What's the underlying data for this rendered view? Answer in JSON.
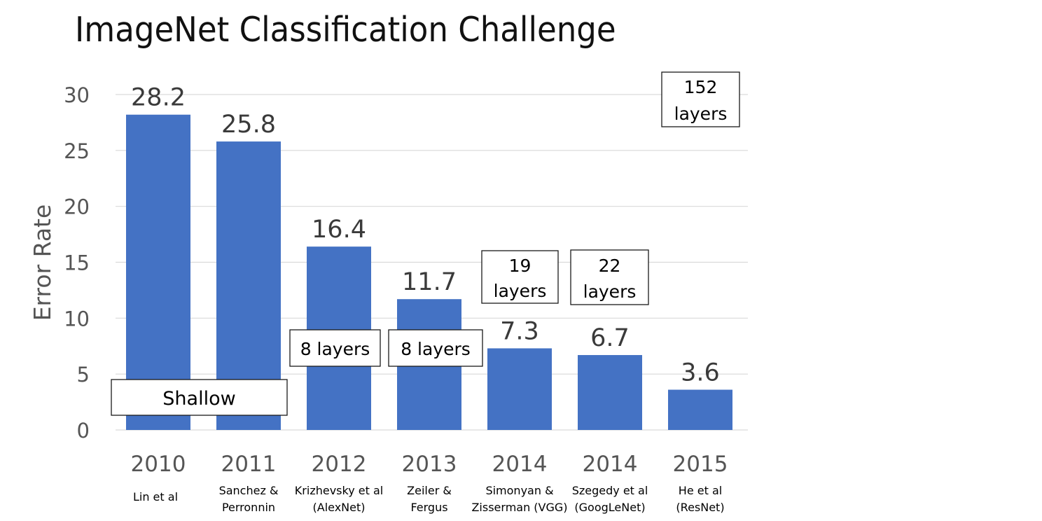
{
  "title": "ImageNet Classification Challenge",
  "chart_data": {
    "type": "bar",
    "ylabel": "Error Rate",
    "xlabel": "",
    "ylim": [
      0,
      30
    ],
    "yticks": [
      0,
      5,
      10,
      15,
      20,
      25,
      30
    ],
    "grid": true,
    "categories": [
      "2010",
      "2011",
      "2012",
      "2013",
      "2014",
      "2014",
      "2015"
    ],
    "category_sublabels": [
      [
        "Lin et al"
      ],
      [
        "Sanchez &",
        "Perronnin"
      ],
      [
        "Krizhevsky et al",
        "(AlexNet)"
      ],
      [
        "Zeiler &",
        "Fergus"
      ],
      [
        "Simonyan &",
        "Zisserman (VGG)"
      ],
      [
        "Szegedy et al",
        "(GoogLeNet)"
      ],
      [
        "He et al",
        "(ResNet)"
      ]
    ],
    "values": [
      28.2,
      25.8,
      16.4,
      11.7,
      7.3,
      6.7,
      3.6
    ],
    "value_labels": [
      "28.2",
      "25.8",
      "16.4",
      "11.7",
      "7.3",
      "6.7",
      "3.6"
    ],
    "bar_color": "#4472C4",
    "annotations": [
      {
        "lines": [
          "Shallow"
        ],
        "spans": [
          0,
          1
        ]
      },
      {
        "lines": [
          "8 layers"
        ],
        "spans": [
          2
        ]
      },
      {
        "lines": [
          "8 layers"
        ],
        "spans": [
          3
        ]
      },
      {
        "lines": [
          "19",
          "layers"
        ],
        "spans": [
          4
        ]
      },
      {
        "lines": [
          "22",
          "layers"
        ],
        "spans": [
          5
        ]
      },
      {
        "lines": [
          "152",
          "layers"
        ],
        "spans": [
          6
        ]
      }
    ]
  }
}
